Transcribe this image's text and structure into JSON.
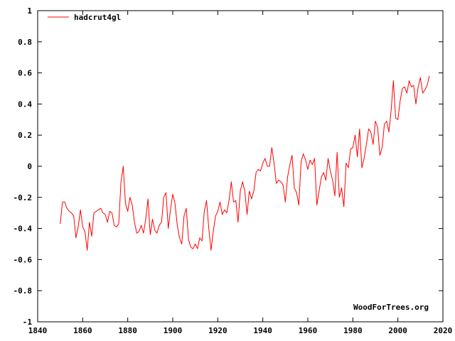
{
  "chart_data": {
    "type": "line",
    "title": "",
    "xlabel": "",
    "ylabel": "",
    "xlim": [
      1840,
      2020
    ],
    "ylim": [
      -1,
      1
    ],
    "xticks": [
      1840,
      1860,
      1880,
      1900,
      1920,
      1940,
      1960,
      1980,
      2000,
      2020
    ],
    "yticks": [
      -1,
      -0.8,
      -0.6,
      -0.4,
      -0.2,
      0,
      0.2,
      0.4,
      0.6,
      0.8,
      1
    ],
    "grid": false,
    "legend": {
      "position": "top-left"
    },
    "watermark": "WoodForTrees.org",
    "series": [
      {
        "name": "hadcrut4gl",
        "color": "#ff0000",
        "x": [
          1850.0,
          1851.0,
          1852.0,
          1853.0,
          1854.0,
          1855.0,
          1856.0,
          1857.0,
          1858.0,
          1859.0,
          1860.0,
          1861.0,
          1862.0,
          1863.0,
          1864.0,
          1865.0,
          1866.0,
          1867.0,
          1868.0,
          1869.0,
          1870.0,
          1871.0,
          1872.0,
          1873.0,
          1874.0,
          1875.0,
          1876.0,
          1877.0,
          1878.0,
          1879.0,
          1880.0,
          1881.0,
          1882.0,
          1883.0,
          1884.0,
          1885.0,
          1886.0,
          1887.0,
          1888.0,
          1889.0,
          1890.0,
          1891.0,
          1892.0,
          1893.0,
          1894.0,
          1895.0,
          1896.0,
          1897.0,
          1898.0,
          1899.0,
          1900.0,
          1901.0,
          1902.0,
          1903.0,
          1904.0,
          1905.0,
          1906.0,
          1907.0,
          1908.0,
          1909.0,
          1910.0,
          1911.0,
          1912.0,
          1913.0,
          1914.0,
          1915.0,
          1916.0,
          1917.0,
          1918.0,
          1919.0,
          1920.0,
          1921.0,
          1922.0,
          1923.0,
          1924.0,
          1925.0,
          1926.0,
          1927.0,
          1928.0,
          1929.0,
          1930.0,
          1931.0,
          1932.0,
          1933.0,
          1934.0,
          1935.0,
          1936.0,
          1937.0,
          1938.0,
          1939.0,
          1940.0,
          1941.0,
          1942.0,
          1943.0,
          1944.0,
          1945.0,
          1946.0,
          1947.0,
          1948.0,
          1949.0,
          1950.0,
          1951.0,
          1952.0,
          1953.0,
          1954.0,
          1955.0,
          1956.0,
          1957.0,
          1958.0,
          1959.0,
          1960.0,
          1961.0,
          1962.0,
          1963.0,
          1964.0,
          1965.0,
          1966.0,
          1967.0,
          1968.0,
          1969.0,
          1970.0,
          1971.0,
          1972.0,
          1973.0,
          1974.0,
          1975.0,
          1976.0,
          1977.0,
          1978.0,
          1979.0,
          1980.0,
          1981.0,
          1982.0,
          1983.0,
          1984.0,
          1985.0,
          1986.0,
          1987.0,
          1988.0,
          1989.0,
          1990.0,
          1991.0,
          1992.0,
          1993.0,
          1994.0,
          1995.0,
          1996.0,
          1997.0,
          1998.0,
          1999.0,
          2000.0,
          2001.0,
          2002.0,
          2003.0,
          2004.0,
          2005.0,
          2006.0,
          2007.0,
          2008.0,
          2009.0,
          2010.0,
          2011.0,
          2012.0,
          2013.0,
          2014.0
        ],
        "y": [
          -0.37,
          -0.23,
          -0.23,
          -0.27,
          -0.29,
          -0.3,
          -0.32,
          -0.46,
          -0.39,
          -0.28,
          -0.39,
          -0.42,
          -0.54,
          -0.36,
          -0.45,
          -0.3,
          -0.29,
          -0.28,
          -0.27,
          -0.3,
          -0.31,
          -0.36,
          -0.29,
          -0.3,
          -0.38,
          -0.39,
          -0.37,
          -0.1,
          0.0,
          -0.24,
          -0.29,
          -0.2,
          -0.25,
          -0.36,
          -0.43,
          -0.42,
          -0.38,
          -0.43,
          -0.34,
          -0.21,
          -0.44,
          -0.34,
          -0.41,
          -0.43,
          -0.38,
          -0.36,
          -0.2,
          -0.17,
          -0.4,
          -0.28,
          -0.18,
          -0.24,
          -0.38,
          -0.46,
          -0.5,
          -0.32,
          -0.27,
          -0.47,
          -0.52,
          -0.53,
          -0.5,
          -0.53,
          -0.46,
          -0.48,
          -0.29,
          -0.22,
          -0.4,
          -0.54,
          -0.42,
          -0.32,
          -0.29,
          -0.23,
          -0.31,
          -0.28,
          -0.3,
          -0.22,
          -0.1,
          -0.23,
          -0.22,
          -0.36,
          -0.16,
          -0.1,
          -0.16,
          -0.31,
          -0.16,
          -0.21,
          -0.16,
          -0.04,
          -0.02,
          -0.03,
          0.02,
          0.05,
          0.0,
          0.0,
          0.12,
          0.02,
          -0.11,
          -0.09,
          -0.1,
          -0.12,
          -0.23,
          -0.07,
          0.01,
          0.07,
          -0.14,
          -0.17,
          -0.25,
          0.03,
          0.08,
          0.04,
          -0.02,
          0.04,
          0.01,
          0.05,
          -0.25,
          -0.16,
          -0.07,
          -0.04,
          -0.09,
          0.05,
          -0.03,
          -0.09,
          -0.19,
          0.09,
          -0.2,
          -0.14,
          -0.26,
          0.02,
          -0.01,
          0.11,
          0.12,
          0.2,
          0.06,
          0.24,
          -0.01,
          0.05,
          0.14,
          0.24,
          0.22,
          0.14,
          0.29,
          0.25,
          0.07,
          0.12,
          0.27,
          0.29,
          0.22,
          0.36,
          0.55,
          0.31,
          0.3,
          0.42,
          0.5,
          0.51,
          0.47,
          0.55,
          0.51,
          0.52,
          0.4,
          0.51,
          0.57,
          0.47,
          0.49,
          0.52,
          0.58
        ]
      }
    ]
  }
}
